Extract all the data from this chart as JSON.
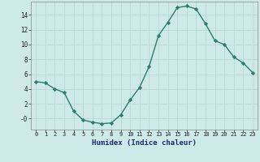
{
  "x": [
    0,
    1,
    2,
    3,
    4,
    5,
    6,
    7,
    8,
    9,
    10,
    11,
    12,
    13,
    14,
    15,
    16,
    17,
    18,
    19,
    20,
    21,
    22,
    23
  ],
  "y": [
    5.0,
    4.8,
    4.0,
    3.5,
    1.0,
    -0.2,
    -0.5,
    -0.7,
    -0.6,
    0.5,
    2.5,
    4.2,
    7.0,
    11.2,
    13.0,
    15.0,
    15.2,
    14.8,
    12.8,
    10.5,
    10.0,
    8.3,
    7.5,
    6.2
  ],
  "xlabel": "Humidex (Indice chaleur)",
  "xlim": [
    -0.5,
    23.5
  ],
  "ylim": [
    -1.5,
    15.8
  ],
  "yticks": [
    0,
    2,
    4,
    6,
    8,
    10,
    12,
    14
  ],
  "ytick_labels": [
    "-0",
    "2",
    "4",
    "6",
    "8",
    "10",
    "12",
    "14"
  ],
  "xtick_labels": [
    "0",
    "1",
    "2",
    "3",
    "4",
    "5",
    "6",
    "7",
    "8",
    "9",
    "10",
    "11",
    "12",
    "13",
    "14",
    "15",
    "16",
    "17",
    "18",
    "19",
    "20",
    "21",
    "22",
    "23"
  ],
  "line_color": "#2d7d6e",
  "marker": "D",
  "marker_size": 2.2,
  "bg_color": "#ceeae8",
  "grid_color": "#b8d8d4",
  "fig_bg": "#ceeae8"
}
